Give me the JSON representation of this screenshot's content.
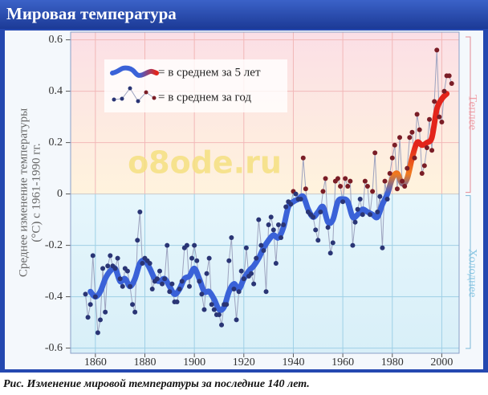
{
  "header": {
    "title": "Мировая температура"
  },
  "chart_data": {
    "type": "line",
    "ylabel": [
      "Среднее изменение температуры",
      "(°C) с 1961-1990 гг."
    ],
    "warm_label": "Теплее",
    "cold_label": "Холоднее",
    "watermark": "o8ode.ru",
    "xlim": [
      1850,
      2007
    ],
    "ylim": [
      -0.62,
      0.63
    ],
    "xticks": [
      1860,
      1880,
      1900,
      1920,
      1940,
      1960,
      1980,
      2000
    ],
    "yticks": [
      -0.6,
      -0.4,
      -0.2,
      0,
      0.2,
      0.4,
      0.6
    ],
    "grid": true,
    "warm_color": "#e3241b",
    "series": [
      {
        "name": "= в среднем за 5 лет",
        "style": "smooth",
        "color": "#3a62d8",
        "x": [
          1858,
          1860,
          1862,
          1864,
          1866,
          1868,
          1870,
          1872,
          1874,
          1876,
          1878,
          1880,
          1882,
          1884,
          1886,
          1888,
          1890,
          1892,
          1894,
          1896,
          1898,
          1900,
          1902,
          1904,
          1906,
          1908,
          1910,
          1912,
          1914,
          1916,
          1918,
          1920,
          1922,
          1924,
          1926,
          1928,
          1930,
          1932,
          1934,
          1936,
          1938,
          1940,
          1942,
          1944,
          1946,
          1948,
          1950,
          1952,
          1954,
          1956,
          1958,
          1960,
          1962,
          1964,
          1966,
          1968,
          1970,
          1972,
          1974,
          1976,
          1978,
          1980,
          1982,
          1984,
          1986,
          1988,
          1990,
          1992,
          1994,
          1996,
          1998,
          2000,
          2002
        ],
        "values": [
          -0.38,
          -0.4,
          -0.38,
          -0.33,
          -0.3,
          -0.29,
          -0.34,
          -0.33,
          -0.36,
          -0.33,
          -0.27,
          -0.26,
          -0.29,
          -0.33,
          -0.34,
          -0.33,
          -0.36,
          -0.39,
          -0.37,
          -0.33,
          -0.32,
          -0.29,
          -0.33,
          -0.38,
          -0.38,
          -0.41,
          -0.45,
          -0.44,
          -0.38,
          -0.35,
          -0.37,
          -0.33,
          -0.3,
          -0.28,
          -0.25,
          -0.21,
          -0.18,
          -0.16,
          -0.17,
          -0.13,
          -0.05,
          -0.03,
          -0.02,
          -0.01,
          -0.06,
          -0.09,
          -0.07,
          -0.05,
          -0.11,
          -0.1,
          -0.03,
          -0.02,
          -0.03,
          -0.09,
          -0.08,
          -0.06,
          -0.07,
          -0.08,
          -0.09,
          -0.04,
          0.0,
          0.06,
          0.08,
          0.04,
          0.06,
          0.14,
          0.2,
          0.19,
          0.2,
          0.22,
          0.33,
          0.37,
          0.39
        ]
      },
      {
        "name": "= в среднем за год",
        "style": "points",
        "color": "#2a3575",
        "warm_color": "#7a1d26",
        "line_color": "#9da3bf",
        "x": [
          1856,
          1857,
          1858,
          1859,
          1860,
          1861,
          1862,
          1863,
          1864,
          1865,
          1866,
          1867,
          1868,
          1869,
          1870,
          1871,
          1872,
          1873,
          1874,
          1875,
          1876,
          1877,
          1878,
          1879,
          1880,
          1881,
          1882,
          1883,
          1884,
          1885,
          1886,
          1887,
          1888,
          1889,
          1890,
          1891,
          1892,
          1893,
          1894,
          1895,
          1896,
          1897,
          1898,
          1899,
          1900,
          1901,
          1902,
          1903,
          1904,
          1905,
          1906,
          1907,
          1908,
          1909,
          1910,
          1911,
          1912,
          1913,
          1914,
          1915,
          1916,
          1917,
          1918,
          1919,
          1920,
          1921,
          1922,
          1923,
          1924,
          1925,
          1926,
          1927,
          1928,
          1929,
          1930,
          1931,
          1932,
          1933,
          1934,
          1935,
          1936,
          1937,
          1938,
          1939,
          1940,
          1941,
          1942,
          1943,
          1944,
          1945,
          1946,
          1947,
          1948,
          1949,
          1950,
          1951,
          1952,
          1953,
          1954,
          1955,
          1956,
          1957,
          1958,
          1959,
          1960,
          1961,
          1962,
          1963,
          1964,
          1965,
          1966,
          1967,
          1968,
          1969,
          1970,
          1971,
          1972,
          1973,
          1974,
          1975,
          1976,
          1977,
          1978,
          1979,
          1980,
          1981,
          1982,
          1983,
          1984,
          1985,
          1986,
          1987,
          1988,
          1989,
          1990,
          1991,
          1992,
          1993,
          1994,
          1995,
          1996,
          1997,
          1998,
          1999,
          2000,
          2001,
          2002,
          2003,
          2004
        ],
        "values": [
          -0.39,
          -0.48,
          -0.43,
          -0.24,
          -0.4,
          -0.54,
          -0.49,
          -0.29,
          -0.46,
          -0.28,
          -0.24,
          -0.28,
          -0.29,
          -0.25,
          -0.33,
          -0.36,
          -0.29,
          -0.3,
          -0.36,
          -0.43,
          -0.46,
          -0.18,
          -0.07,
          -0.27,
          -0.25,
          -0.26,
          -0.27,
          -0.37,
          -0.34,
          -0.33,
          -0.3,
          -0.35,
          -0.33,
          -0.2,
          -0.38,
          -0.35,
          -0.42,
          -0.42,
          -0.37,
          -0.34,
          -0.21,
          -0.2,
          -0.36,
          -0.25,
          -0.2,
          -0.26,
          -0.34,
          -0.39,
          -0.45,
          -0.31,
          -0.25,
          -0.43,
          -0.45,
          -0.47,
          -0.47,
          -0.51,
          -0.43,
          -0.43,
          -0.26,
          -0.17,
          -0.37,
          -0.49,
          -0.38,
          -0.3,
          -0.33,
          -0.21,
          -0.32,
          -0.31,
          -0.35,
          -0.25,
          -0.1,
          -0.2,
          -0.22,
          -0.38,
          -0.12,
          -0.09,
          -0.14,
          -0.27,
          -0.12,
          -0.17,
          -0.12,
          -0.05,
          -0.03,
          -0.04,
          0.01,
          0.0,
          -0.02,
          -0.02,
          0.14,
          0.02,
          -0.07,
          -0.08,
          -0.09,
          -0.14,
          -0.18,
          -0.07,
          0.01,
          0.06,
          -0.13,
          -0.23,
          -0.19,
          0.05,
          0.06,
          0.03,
          -0.03,
          0.06,
          0.03,
          0.05,
          -0.2,
          -0.11,
          -0.06,
          -0.02,
          -0.08,
          0.05,
          0.03,
          -0.08,
          0.01,
          0.16,
          -0.07,
          -0.01,
          -0.21,
          0.05,
          -0.02,
          0.08,
          0.14,
          0.19,
          0.02,
          0.22,
          0.05,
          0.03,
          0.1,
          0.22,
          0.24,
          0.14,
          0.31,
          0.25,
          0.08,
          0.11,
          0.18,
          0.29,
          0.17,
          0.36,
          0.56,
          0.3,
          0.28,
          0.4,
          0.46,
          0.46,
          0.43
        ]
      }
    ]
  },
  "caption": "Рис. Изменение мировой температуры за последние 140 лет."
}
